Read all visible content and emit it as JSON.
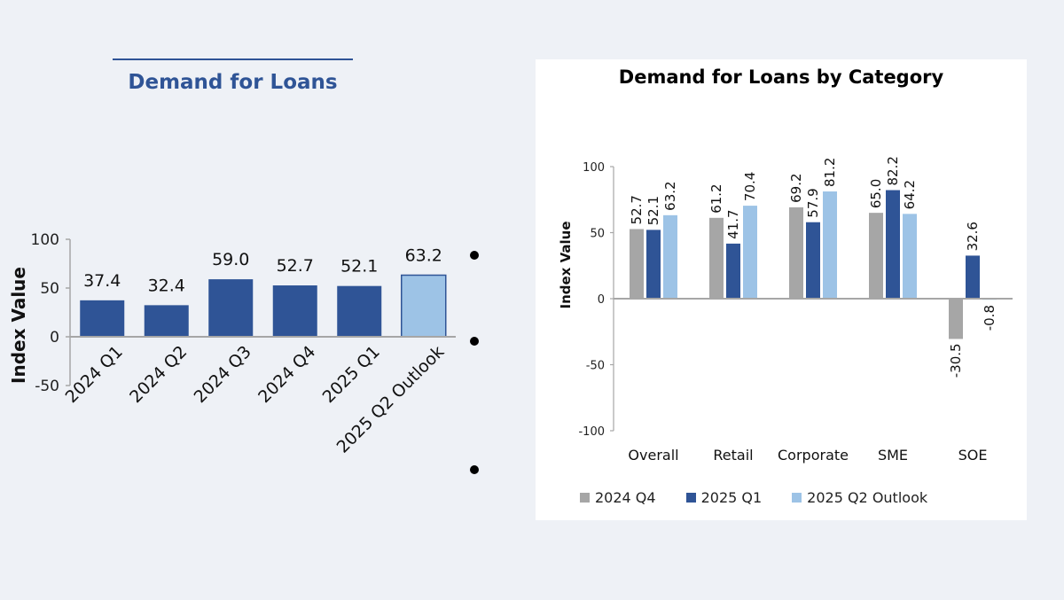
{
  "chart_data": [
    {
      "type": "bar",
      "title": "Demand for Loans",
      "ylabel": "Index Value",
      "ylim": [
        -50,
        100
      ],
      "yticks": [
        "100",
        "50",
        "0",
        "-50"
      ],
      "categories": [
        "2024 Q1",
        "2024 Q2",
        "2024 Q3",
        "2024 Q4",
        "2025 Q1",
        "2025 Q2 Outlook"
      ],
      "values": [
        37.4,
        32.4,
        59.0,
        52.7,
        52.1,
        63.2
      ],
      "labels": [
        "37.4",
        "32.4",
        "59.0",
        "52.7",
        "52.1",
        "63.2"
      ],
      "colors": {
        "actual": "#2f5496",
        "outlook": "#9dc3e6"
      },
      "grid": false
    },
    {
      "type": "bar",
      "title": "Demand for Loans by Category",
      "ylabel": "Index Value",
      "ylim": [
        -100,
        100
      ],
      "yticks": [
        "100",
        "50",
        "0",
        "-50",
        "-100"
      ],
      "categories": [
        "Overall",
        "Retail",
        "Corporate",
        "SME",
        "SOE"
      ],
      "series": [
        {
          "name": "2024 Q4",
          "color": "#a6a6a6",
          "values": [
            52.7,
            61.2,
            69.2,
            65.0,
            -30.5
          ],
          "labels": [
            "52.7",
            "61.2",
            "69.2",
            "65.0",
            "-30.5"
          ]
        },
        {
          "name": "2025 Q1",
          "color": "#2f5496",
          "values": [
            52.1,
            41.7,
            57.9,
            82.2,
            32.6
          ],
          "labels": [
            "52.1",
            "41.7",
            "57.9",
            "82.2",
            "32.6"
          ]
        },
        {
          "name": "2025 Q2 Outlook",
          "color": "#9dc3e6",
          "values": [
            63.2,
            70.4,
            81.2,
            64.2,
            -0.8
          ],
          "labels": [
            "63.2",
            "70.4",
            "81.2",
            "64.2",
            "-0.8"
          ]
        }
      ],
      "legend": "bottom",
      "grid": false
    }
  ]
}
